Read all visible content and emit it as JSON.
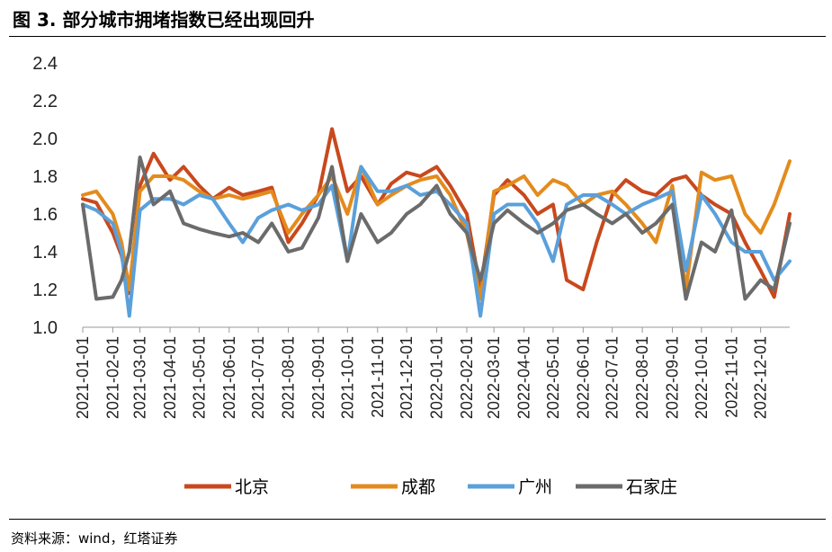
{
  "header": {
    "title": "图 3. 部分城市拥堵指数已经出现回升"
  },
  "footer": {
    "source": "资料来源：wind，红塔证券"
  },
  "chart_data": {
    "type": "line",
    "title": "图 3. 部分城市拥堵指数已经出现回升",
    "xlabel": "",
    "ylabel": "",
    "ylim": [
      1.0,
      2.4
    ],
    "yticks": [
      "1.0",
      "1.2",
      "1.4",
      "1.6",
      "1.8",
      "2.0",
      "2.2",
      "2.4"
    ],
    "x_tick_labels": [
      "2021-01-01",
      "2021-02-01",
      "2021-03-01",
      "2021-04-01",
      "2021-05-01",
      "2021-06-01",
      "2021-07-01",
      "2021-08-01",
      "2021-09-01",
      "2021-10-01",
      "2021-11-01",
      "2021-12-01",
      "2022-01-01",
      "2022-02-01",
      "2022-03-01",
      "2022-04-01",
      "2022-05-01",
      "2022-06-01",
      "2022-07-01",
      "2022-08-01",
      "2022-09-01",
      "2022-10-01",
      "2022-11-01",
      "2022-12-01"
    ],
    "grid": false,
    "legend_position": "bottom",
    "x": [
      "2021-01-01",
      "2021-01-15",
      "2021-02-01",
      "2021-02-10",
      "2021-02-18",
      "2021-03-01",
      "2021-03-15",
      "2021-04-01",
      "2021-04-15",
      "2021-05-01",
      "2021-05-15",
      "2021-06-01",
      "2021-06-15",
      "2021-07-01",
      "2021-07-15",
      "2021-08-01",
      "2021-08-15",
      "2021-09-01",
      "2021-09-15",
      "2021-10-01",
      "2021-10-15",
      "2021-11-01",
      "2021-11-15",
      "2021-12-01",
      "2021-12-15",
      "2022-01-01",
      "2022-01-15",
      "2022-02-01",
      "2022-02-15",
      "2022-03-01",
      "2022-03-15",
      "2022-04-01",
      "2022-04-15",
      "2022-05-01",
      "2022-05-15",
      "2022-06-01",
      "2022-06-15",
      "2022-07-01",
      "2022-07-15",
      "2022-08-01",
      "2022-08-15",
      "2022-09-01",
      "2022-09-15",
      "2022-10-01",
      "2022-10-15",
      "2022-11-01",
      "2022-11-15",
      "2022-12-01",
      "2022-12-15",
      "2022-12-31"
    ],
    "series": [
      {
        "name": "北京",
        "color": "#c8491d",
        "values": [
          1.68,
          1.66,
          1.5,
          1.38,
          1.18,
          1.75,
          1.92,
          1.78,
          1.85,
          1.75,
          1.68,
          1.74,
          1.7,
          1.72,
          1.74,
          1.45,
          1.55,
          1.7,
          2.05,
          1.72,
          1.8,
          1.65,
          1.76,
          1.82,
          1.8,
          1.85,
          1.75,
          1.6,
          1.2,
          1.7,
          1.78,
          1.7,
          1.6,
          1.65,
          1.25,
          1.2,
          1.45,
          1.7,
          1.78,
          1.72,
          1.7,
          1.78,
          1.8,
          1.7,
          1.65,
          1.6,
          1.45,
          1.3,
          1.16,
          1.6
        ]
      },
      {
        "name": "成都",
        "color": "#e38b1d",
        "values": [
          1.7,
          1.72,
          1.6,
          1.45,
          1.2,
          1.72,
          1.8,
          1.8,
          1.78,
          1.72,
          1.68,
          1.7,
          1.68,
          1.7,
          1.72,
          1.5,
          1.6,
          1.7,
          1.8,
          1.6,
          1.85,
          1.65,
          1.7,
          1.75,
          1.78,
          1.8,
          1.7,
          1.5,
          1.15,
          1.72,
          1.75,
          1.8,
          1.7,
          1.78,
          1.75,
          1.65,
          1.7,
          1.72,
          1.65,
          1.55,
          1.45,
          1.75,
          1.2,
          1.82,
          1.78,
          1.8,
          1.6,
          1.5,
          1.65,
          1.88
        ]
      },
      {
        "name": "广州",
        "color": "#5aa0db",
        "values": [
          1.65,
          1.62,
          1.55,
          1.4,
          1.06,
          1.62,
          1.68,
          1.68,
          1.65,
          1.7,
          1.68,
          1.55,
          1.45,
          1.58,
          1.62,
          1.65,
          1.62,
          1.65,
          1.75,
          1.35,
          1.85,
          1.72,
          1.72,
          1.75,
          1.7,
          1.72,
          1.65,
          1.55,
          1.06,
          1.6,
          1.65,
          1.65,
          1.55,
          1.35,
          1.65,
          1.7,
          1.7,
          1.65,
          1.6,
          1.65,
          1.68,
          1.72,
          1.3,
          1.7,
          1.6,
          1.45,
          1.4,
          1.4,
          1.25,
          1.35
        ]
      },
      {
        "name": "石家庄",
        "color": "#6b6b6b",
        "values": [
          1.65,
          1.15,
          1.16,
          1.25,
          1.4,
          1.9,
          1.65,
          1.72,
          1.55,
          1.52,
          1.5,
          1.48,
          1.5,
          1.45,
          1.55,
          1.4,
          1.42,
          1.58,
          1.85,
          1.35,
          1.6,
          1.45,
          1.5,
          1.6,
          1.65,
          1.75,
          1.6,
          1.5,
          1.25,
          1.55,
          1.62,
          1.55,
          1.5,
          1.55,
          1.62,
          1.65,
          1.6,
          1.55,
          1.6,
          1.5,
          1.55,
          1.65,
          1.15,
          1.45,
          1.4,
          1.62,
          1.15,
          1.25,
          1.2,
          1.55
        ]
      }
    ]
  }
}
